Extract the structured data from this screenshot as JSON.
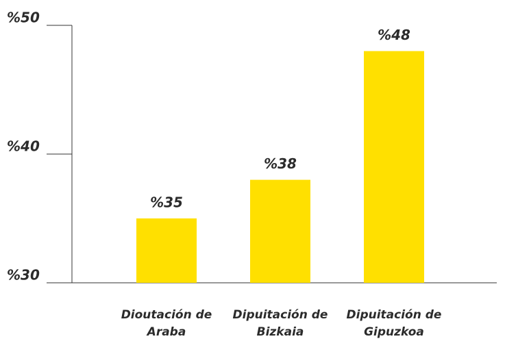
{
  "chart_data": {
    "type": "bar",
    "categories": [
      "Dioutación de Araba",
      "Dipuitación de Bizkaia",
      "Dipuitación de Gipuzkoa"
    ],
    "values": [
      35,
      38,
      48
    ],
    "value_labels": [
      "%35",
      "%38",
      "%48"
    ],
    "color": "#ffe000",
    "ylim": [
      30,
      50
    ],
    "yticks": [
      {
        "value": 30,
        "label": "%30"
      },
      {
        "value": 40,
        "label": "%40"
      },
      {
        "value": 50,
        "label": "%50"
      }
    ]
  }
}
